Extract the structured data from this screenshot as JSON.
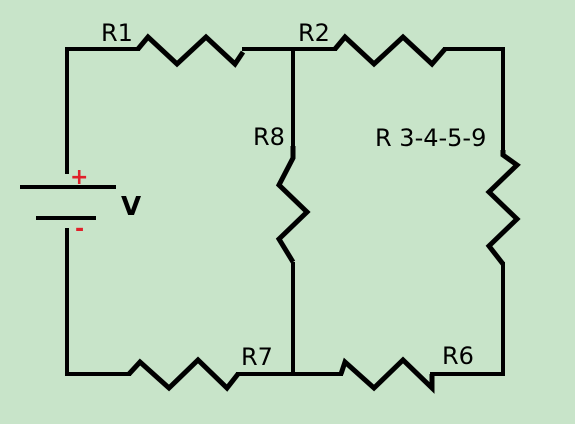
{
  "labels": {
    "r1": "R1",
    "r2": "R2",
    "r8": "R8",
    "r3459": "R 3-4-5-9",
    "r7": "R7",
    "r6": "R6",
    "voltage": "V",
    "plus": "+",
    "minus": "-"
  },
  "colors": {
    "background": "#c8e4c9",
    "wire": "#000000",
    "polarity": "#e0202a"
  }
}
